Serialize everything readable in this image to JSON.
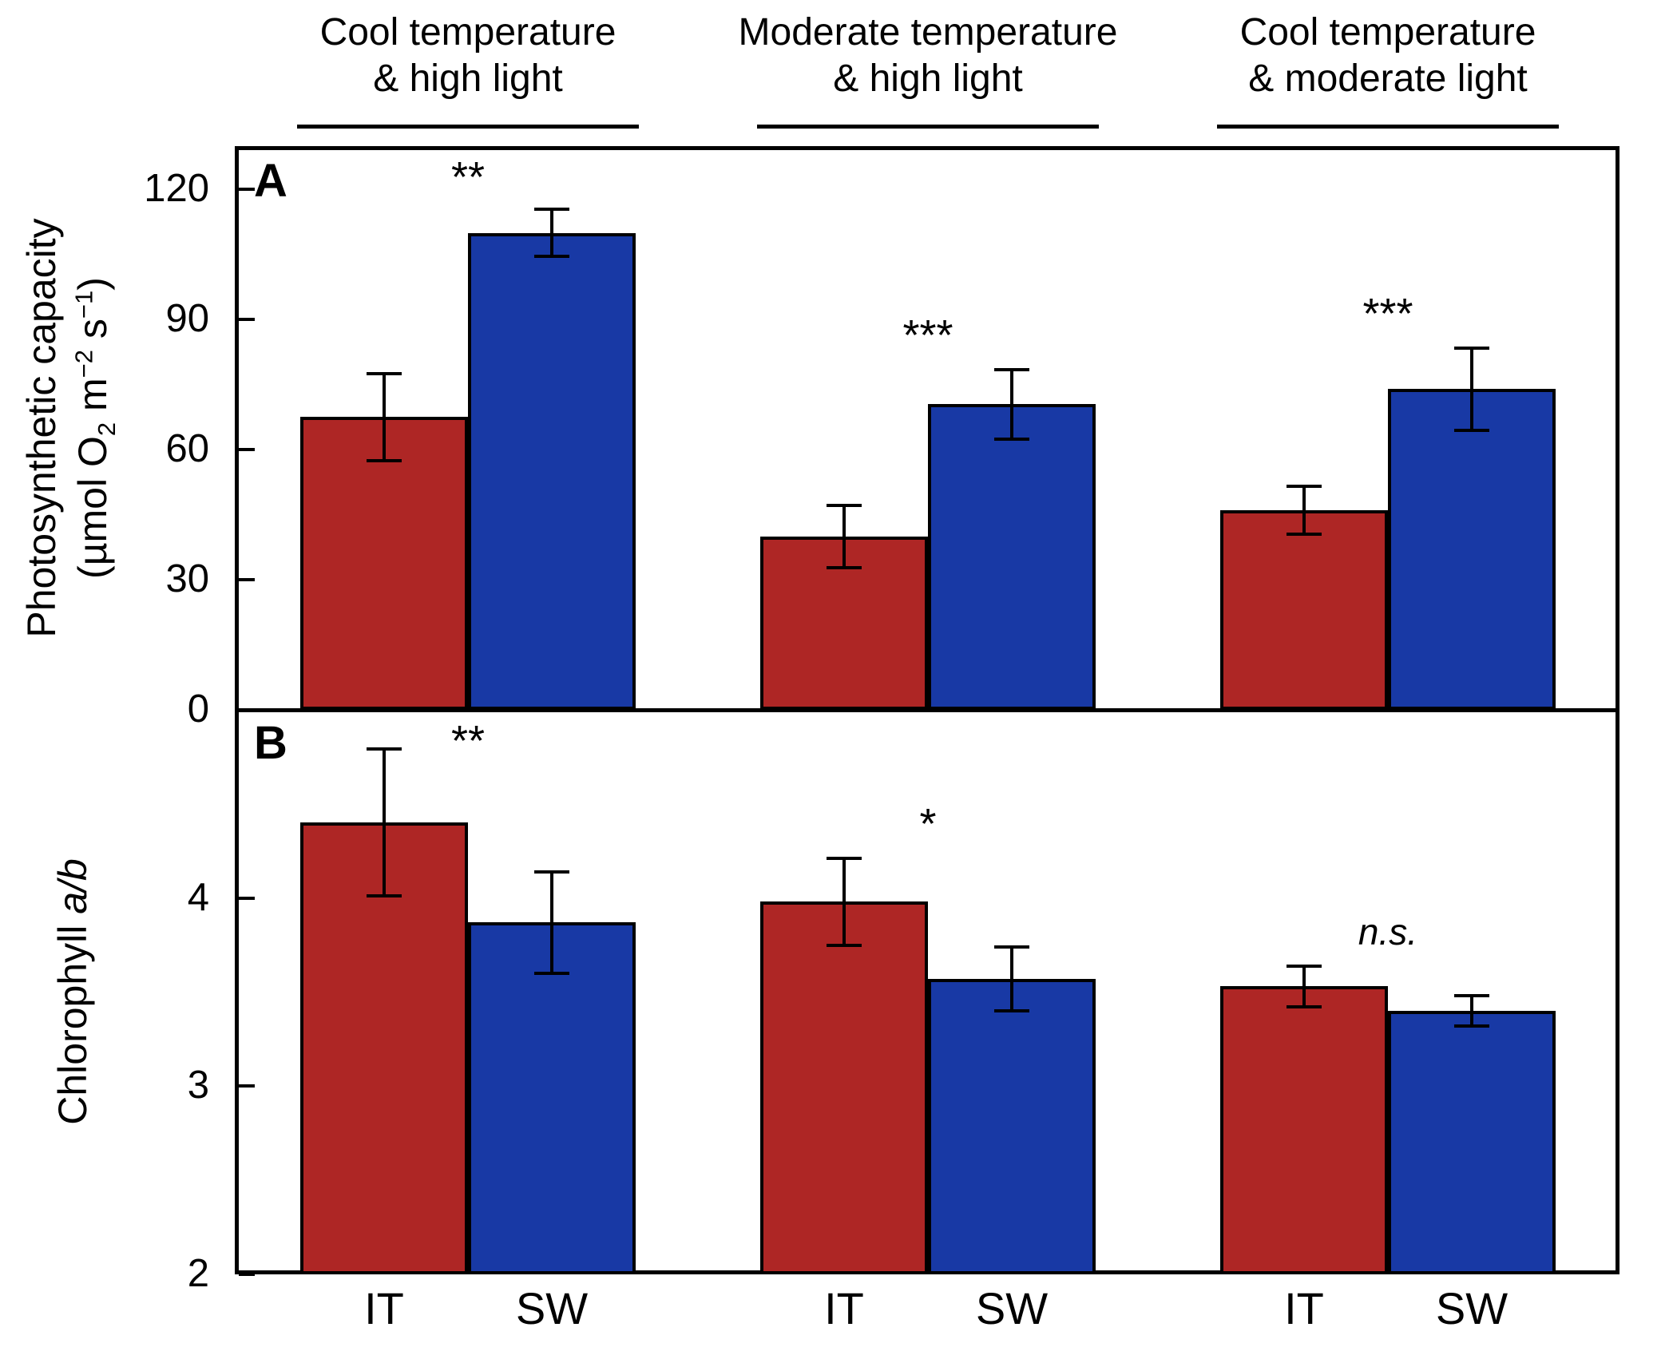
{
  "figure": {
    "panel_a_letter": "A",
    "panel_b_letter": "B",
    "colors": {
      "it_red": "#AE2625",
      "sw_blue": "#1839A5",
      "axis_black": "#000000"
    },
    "group_headers": [
      {
        "line1": "Cool temperature",
        "line2": "& high light"
      },
      {
        "line1": "Moderate temperature",
        "line2": "& high light"
      },
      {
        "line1": "Cool temperature",
        "line2": "& moderate light"
      }
    ],
    "x_tick_labels": [
      "IT",
      "SW"
    ]
  },
  "chart_data": [
    {
      "panel": "A",
      "type": "bar",
      "ylabel": "Photosynthetic capacity (µmol O2 m-2 s-1)",
      "ylabel_line1_html": "Photosynthetic capacity",
      "ylabel_line2_html": "(µmol O<sub>2</sub> m<sup>−2</sup> s<sup>−1</sup>)",
      "ylim": [
        0,
        130
      ],
      "yticks": [
        0,
        30,
        60,
        90,
        120
      ],
      "categories": [
        "Cool temperature & high light",
        "Moderate temperature & high light",
        "Cool temperature & moderate light"
      ],
      "series": [
        {
          "name": "IT",
          "color": "#AE2625",
          "values": [
            67.5,
            40,
            46
          ],
          "errors": [
            10,
            7.2,
            5.5
          ]
        },
        {
          "name": "SW",
          "color": "#1839A5",
          "values": [
            110,
            70.5,
            74
          ],
          "errors": [
            5.5,
            8,
            9.5
          ]
        }
      ],
      "significance": [
        "**",
        "***",
        "***"
      ],
      "grid": false,
      "legend": "none"
    },
    {
      "panel": "B",
      "type": "bar",
      "ylabel": "Chlorophyll a/b",
      "ylabel_line1_html": "Chlorophyll <i>a/b</i>",
      "ylabel_line2_html": "",
      "ylim": [
        2,
        5
      ],
      "yticks": [
        2,
        3,
        4
      ],
      "categories": [
        "Cool temperature & high light",
        "Moderate temperature & high light",
        "Cool temperature & moderate light"
      ],
      "series": [
        {
          "name": "IT",
          "color": "#AE2625",
          "values": [
            4.4,
            3.98,
            3.53
          ],
          "errors": [
            0.39,
            0.23,
            0.11
          ]
        },
        {
          "name": "SW",
          "color": "#1839A5",
          "values": [
            3.87,
            3.57,
            3.4
          ],
          "errors": [
            0.27,
            0.17,
            0.08
          ]
        }
      ],
      "significance": [
        "**",
        "*",
        "n.s."
      ],
      "grid": false,
      "legend": "none"
    }
  ]
}
